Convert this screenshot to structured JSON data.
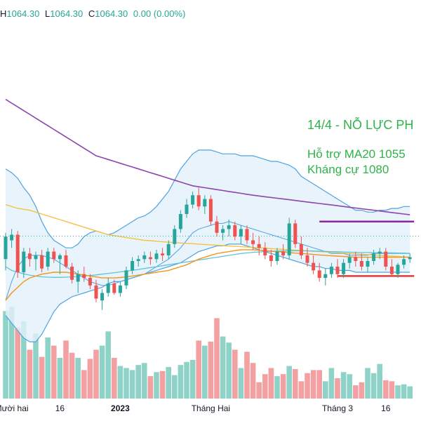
{
  "header": {
    "high_label": "H",
    "high_value": "1064.30",
    "low_label": "L",
    "low_value": "1064.30",
    "close_label": "C",
    "close_value": "1064.30",
    "change": "0.00 (0.00%)"
  },
  "colors": {
    "up": "#26a69a",
    "down": "#ef5350",
    "vol_up": "#8fd3c8",
    "vol_down": "#f2a0a2",
    "bb": "#4fa3e0",
    "bb_fill": "#e3f0fb",
    "ma_long": "#8e44ad",
    "ma_orange": "#f7931a",
    "ma_yellow": "#f6c244",
    "ma_cyan": "#5dc4d8",
    "annotation": "#2fb34a",
    "resistance": "#8e24aa",
    "support": "#e53935"
  },
  "chart_data": {
    "type": "candlestick",
    "title": "",
    "y_range": [
      1020,
      1160
    ],
    "candles": [
      [
        1052,
        1066,
        1046,
        1064
      ],
      [
        1062,
        1068,
        1058,
        1065
      ],
      [
        1065,
        1067,
        1042,
        1045
      ],
      [
        1045,
        1058,
        1042,
        1056
      ],
      [
        1055,
        1058,
        1048,
        1052
      ],
      [
        1052,
        1056,
        1046,
        1054
      ],
      [
        1054,
        1057,
        1045,
        1047
      ],
      [
        1048,
        1058,
        1046,
        1056
      ],
      [
        1056,
        1058,
        1050,
        1052
      ],
      [
        1052,
        1055,
        1044,
        1054
      ],
      [
        1054,
        1057,
        1047,
        1048
      ],
      [
        1048,
        1050,
        1039,
        1041
      ],
      [
        1040,
        1046,
        1034,
        1044
      ],
      [
        1044,
        1048,
        1040,
        1042
      ],
      [
        1042,
        1044,
        1036,
        1038
      ],
      [
        1038,
        1041,
        1029,
        1031
      ],
      [
        1030,
        1036,
        1025,
        1034
      ],
      [
        1034,
        1042,
        1032,
        1039
      ],
      [
        1039,
        1041,
        1033,
        1034
      ],
      [
        1034,
        1040,
        1032,
        1038
      ],
      [
        1038,
        1048,
        1036,
        1046
      ],
      [
        1046,
        1053,
        1044,
        1051
      ],
      [
        1051,
        1054,
        1048,
        1052
      ],
      [
        1052,
        1056,
        1050,
        1054
      ],
      [
        1053,
        1056,
        1049,
        1052
      ],
      [
        1052,
        1057,
        1050,
        1055
      ],
      [
        1055,
        1058,
        1051,
        1054
      ],
      [
        1054,
        1062,
        1052,
        1060
      ],
      [
        1060,
        1070,
        1058,
        1068
      ],
      [
        1068,
        1078,
        1066,
        1076
      ],
      [
        1076,
        1084,
        1074,
        1081
      ],
      [
        1081,
        1088,
        1079,
        1086
      ],
      [
        1086,
        1090,
        1078,
        1080
      ],
      [
        1080,
        1086,
        1076,
        1084
      ],
      [
        1084,
        1086,
        1070,
        1072
      ],
      [
        1072,
        1075,
        1064,
        1066
      ],
      [
        1066,
        1070,
        1062,
        1068
      ],
      [
        1068,
        1073,
        1064,
        1070
      ],
      [
        1070,
        1072,
        1062,
        1064
      ],
      [
        1064,
        1070,
        1060,
        1068
      ],
      [
        1068,
        1070,
        1060,
        1062
      ],
      [
        1062,
        1066,
        1057,
        1060
      ],
      [
        1060,
        1064,
        1054,
        1058
      ],
      [
        1058,
        1061,
        1052,
        1054
      ],
      [
        1054,
        1057,
        1048,
        1051
      ],
      [
        1051,
        1058,
        1049,
        1056
      ],
      [
        1056,
        1060,
        1052,
        1054
      ],
      [
        1054,
        1074,
        1052,
        1071
      ],
      [
        1071,
        1073,
        1058,
        1060
      ],
      [
        1060,
        1064,
        1052,
        1054
      ],
      [
        1054,
        1058,
        1048,
        1050
      ],
      [
        1050,
        1054,
        1044,
        1046
      ],
      [
        1046,
        1050,
        1040,
        1042
      ],
      [
        1042,
        1047,
        1038,
        1044
      ],
      [
        1044,
        1050,
        1042,
        1048
      ],
      [
        1048,
        1052,
        1042,
        1044
      ],
      [
        1044,
        1052,
        1042,
        1050
      ],
      [
        1050,
        1055,
        1047,
        1053
      ],
      [
        1053,
        1056,
        1048,
        1051
      ],
      [
        1051,
        1055,
        1046,
        1048
      ],
      [
        1048,
        1053,
        1045,
        1051
      ],
      [
        1051,
        1057,
        1049,
        1055
      ],
      [
        1055,
        1058,
        1052,
        1056
      ],
      [
        1056,
        1058,
        1046,
        1048
      ],
      [
        1048,
        1052,
        1043,
        1044
      ],
      [
        1044,
        1050,
        1042,
        1049
      ],
      [
        1049,
        1054,
        1047,
        1052
      ],
      [
        1052,
        1055,
        1050,
        1053
      ]
    ],
    "volume": [
      86,
      90,
      70,
      76,
      48,
      64,
      41,
      60,
      52,
      40,
      57,
      45,
      40,
      28,
      39,
      48,
      52,
      66,
      40,
      32,
      30,
      28,
      33,
      35,
      22,
      26,
      27,
      31,
      23,
      33,
      36,
      38,
      57,
      52,
      56,
      79,
      61,
      55,
      48,
      30,
      46,
      35,
      16,
      24,
      30,
      22,
      24,
      32,
      29,
      17,
      25,
      28,
      28,
      17,
      30,
      20,
      26,
      24,
      13,
      16,
      30,
      25,
      34,
      18,
      17,
      13,
      14,
      12
    ],
    "bb_upper": [
      1100,
      1098,
      1095,
      1090,
      1086,
      1080,
      1072,
      1066,
      1062,
      1060,
      1058,
      1058,
      1060,
      1064,
      1066,
      1067,
      1066,
      1065,
      1066,
      1068,
      1070,
      1072,
      1074,
      1075,
      1077,
      1080,
      1084,
      1088,
      1094,
      1100,
      1104,
      1108,
      1110,
      1110,
      1110,
      1109,
      1108,
      1108,
      1108,
      1107,
      1107,
      1107,
      1106,
      1105,
      1104,
      1104,
      1103,
      1102,
      1100,
      1096,
      1094,
      1092,
      1090,
      1088,
      1086,
      1084,
      1082,
      1080,
      1078,
      1078,
      1077,
      1077,
      1078,
      1078,
      1079,
      1079,
      1080,
      1080
    ],
    "bb_lower": [
      1022,
      1018,
      1014,
      1010,
      1008,
      1008,
      1012,
      1018,
      1024,
      1028,
      1030,
      1032,
      1033,
      1034,
      1035,
      1036,
      1037,
      1039,
      1040,
      1040,
      1041,
      1042,
      1043,
      1044,
      1045,
      1046,
      1047,
      1048,
      1049,
      1050,
      1052,
      1054,
      1056,
      1057,
      1058,
      1059,
      1059,
      1060,
      1060,
      1060,
      1059,
      1058,
      1057,
      1056,
      1055,
      1054,
      1053,
      1052,
      1051,
      1050,
      1049,
      1048,
      1048,
      1047,
      1047,
      1046,
      1046,
      1046,
      1045,
      1045,
      1045,
      1045,
      1045,
      1045,
      1045,
      1045,
      1045,
      1045
    ],
    "bb_mid": [
      1030,
      1040,
      1048,
      1052,
      1054,
      1054,
      1054,
      1053,
      1052,
      1050,
      1048,
      1046,
      1044,
      1042,
      1040,
      1039,
      1038,
      1038,
      1039,
      1040,
      1041,
      1042,
      1043,
      1044,
      1046,
      1048,
      1050,
      1052,
      1055,
      1058,
      1062,
      1066,
      1068,
      1069,
      1070,
      1071,
      1071,
      1072,
      1071,
      1070,
      1069,
      1068,
      1067,
      1066,
      1065,
      1064,
      1063,
      1062,
      1061,
      1060,
      1059,
      1058,
      1057,
      1056,
      1055,
      1055,
      1055,
      1054,
      1054,
      1054,
      1054,
      1055,
      1055,
      1055,
      1055,
      1055,
      1055,
      1055
    ],
    "ma_long": [
      1137,
      1135,
      1133,
      1131,
      1129,
      1127,
      1125,
      1123,
      1121,
      1119,
      1117,
      1115,
      1113,
      1111,
      1109,
      1107,
      1106,
      1105,
      1104,
      1103,
      1102,
      1101,
      1100,
      1099,
      1098,
      1097,
      1096,
      1095,
      1094,
      1093,
      1092,
      1091,
      1090.5,
      1090,
      1089.5,
      1089,
      1088.5,
      1088,
      1087.5,
      1087,
      1086.5,
      1086,
      1085.6,
      1085.2,
      1084.8,
      1084.4,
      1084,
      1083.6,
      1083.2,
      1082.8,
      1082.4,
      1082,
      1081.6,
      1081.2,
      1080.8,
      1080.4,
      1080,
      1079.6,
      1079.2,
      1078.8,
      1078.4,
      1078,
      1077.6,
      1077.2,
      1076.8,
      1076.4,
      1076,
      1075.6
    ],
    "ma_yellow": [
      1081,
      1080,
      1079,
      1078.5,
      1078,
      1077,
      1076,
      1075,
      1074,
      1073,
      1072,
      1071,
      1070,
      1069,
      1068,
      1067,
      1066,
      1065,
      1064.5,
      1064,
      1063.5,
      1063,
      1062.5,
      1062,
      1061.8,
      1061.5,
      1061.2,
      1061,
      1060.8,
      1060.6,
      1060.4,
      1060.2,
      1060,
      1059.8,
      1059.6,
      1059.4,
      1059.2,
      1059,
      1058.8,
      1058.6,
      1058.4,
      1058.2,
      1058,
      1057.8,
      1057.6,
      1057.4,
      1057.2,
      1057,
      1056.8,
      1056.6,
      1056.4,
      1056.2,
      1056,
      1055.8,
      1055.6,
      1055.4,
      1055.2,
      1055,
      1054.8,
      1054.6,
      1054.4,
      1054.2,
      1054,
      1053.8,
      1053.6,
      1053.4,
      1053.2,
      1053
    ],
    "ma_orange": [
      1030,
      1034,
      1037,
      1040,
      1042,
      1043,
      1044,
      1044.5,
      1045,
      1045,
      1045,
      1044.5,
      1044,
      1043.5,
      1043,
      1042.5,
      1042,
      1042,
      1042,
      1042.2,
      1042.5,
      1043,
      1043.5,
      1044,
      1044.5,
      1045,
      1045.5,
      1046,
      1047,
      1048,
      1049,
      1050.5,
      1052,
      1053,
      1054,
      1055,
      1055.5,
      1056,
      1056.5,
      1057,
      1057,
      1057,
      1056.8,
      1056.5,
      1056.2,
      1056,
      1055.8,
      1055.5,
      1055.2,
      1055,
      1054.8,
      1054.5,
      1054.2,
      1054,
      1053.8,
      1053.6,
      1053.4,
      1053.2,
      1053,
      1053,
      1053,
      1053,
      1053,
      1053,
      1053,
      1053,
      1053,
      1053
    ],
    "ma_cyan": [
      1048,
      1046,
      1045,
      1044.2,
      1043.5,
      1043,
      1042.6,
      1042.4,
      1042.3,
      1042.3,
      1042.4,
      1042.6,
      1042.8,
      1043,
      1043.3,
      1043.6,
      1044,
      1044.4,
      1044.8,
      1045.2,
      1045.6,
      1046,
      1046.5,
      1047,
      1047.5,
      1048,
      1048.5,
      1049,
      1049.5,
      1050,
      1050.5,
      1051,
      1051.5,
      1052,
      1052.5,
      1053,
      1053.5,
      1054,
      1054.5,
      1055,
      1055.3,
      1055.6,
      1055.8,
      1056,
      1056.2,
      1056.3,
      1056.4,
      1056.4,
      1056.4,
      1056.4,
      1056.4,
      1056.3,
      1056.2,
      1056.1,
      1056,
      1055.9,
      1055.8,
      1055.7,
      1055.6,
      1055.5,
      1055.5,
      1055.4,
      1055.4,
      1055.3,
      1055.3,
      1055.2,
      1055.2,
      1055.1
    ],
    "levels": [
      {
        "name": "resistance",
        "value": 1072,
        "from": 52,
        "to": 67
      },
      {
        "name": "support",
        "value": 1043,
        "from": 55,
        "to": 67
      }
    ],
    "last_price": 1064.3,
    "x_labels": [
      {
        "index": 1,
        "text": "Mười hai"
      },
      {
        "index": 9,
        "text": "16"
      },
      {
        "index": 19,
        "text": "2023"
      },
      {
        "index": 34,
        "text": "Tháng Hai"
      },
      {
        "index": 55,
        "text": "Tháng 3"
      },
      {
        "index": 63,
        "text": "16"
      }
    ],
    "annotations": [
      {
        "text": "14/4 - NỖ LỰC PH"
      },
      {
        "text": "Hỗ trợ MA20 1055"
      },
      {
        "text": "Kháng cự 1080"
      }
    ]
  }
}
